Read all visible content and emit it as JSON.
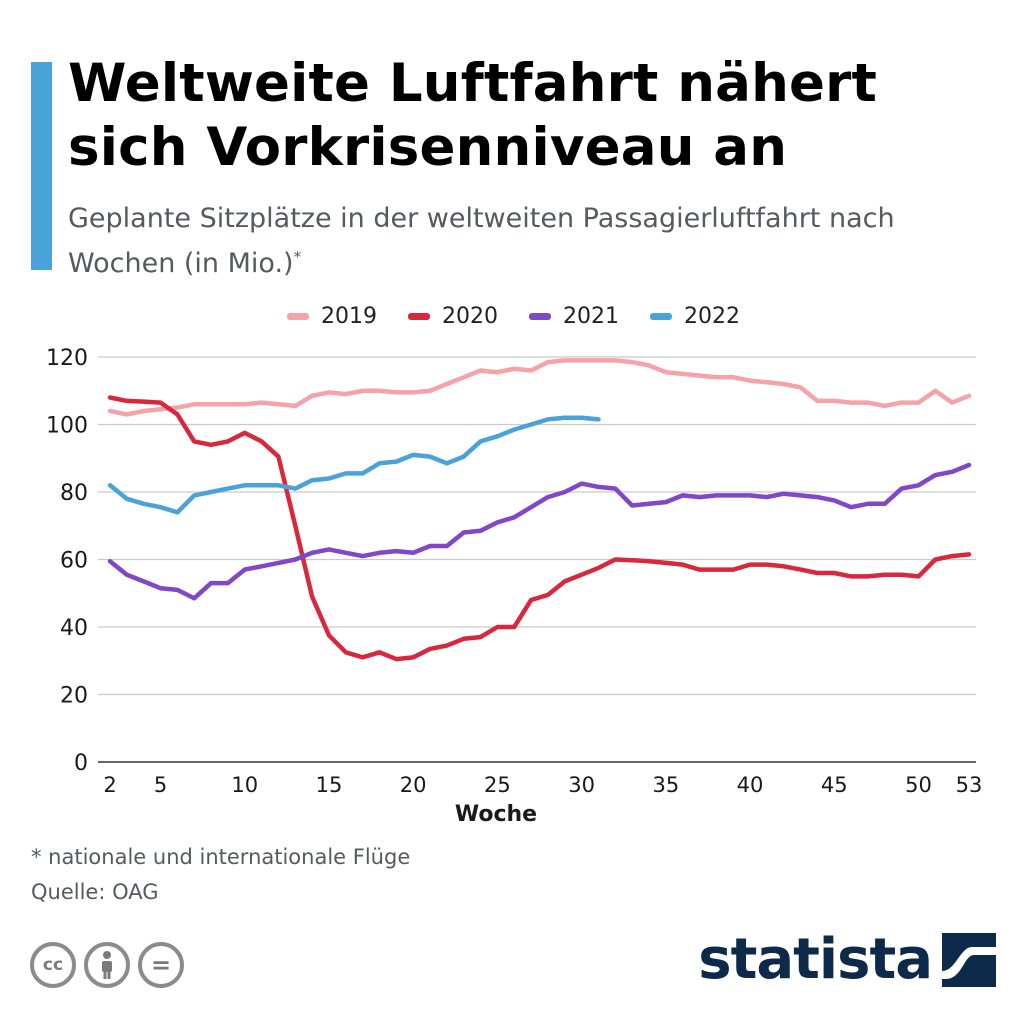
{
  "header": {
    "title": "Weltweite Luftfahrt nähert sich Vorkrisenniveau an",
    "subtitle": "Geplante Sitzplätze in der weltweiten Passagierluftfahrt nach Wochen (in Mio.)",
    "subtitle_marker": "*",
    "accent_color": "#4aa3d8"
  },
  "chart_data": {
    "type": "line",
    "title": "",
    "xlabel": "Woche",
    "ylabel": "",
    "xlim": [
      2,
      53
    ],
    "ylim": [
      0,
      120
    ],
    "x_ticks": [
      2,
      5,
      10,
      15,
      20,
      25,
      30,
      35,
      40,
      45,
      50,
      53
    ],
    "y_ticks": [
      0,
      20,
      40,
      60,
      80,
      100,
      120
    ],
    "grid": true,
    "legend_position": "top",
    "series": [
      {
        "name": "2019",
        "color": "#f5a3a8",
        "x": [
          2,
          3,
          4,
          5,
          6,
          7,
          8,
          9,
          10,
          11,
          12,
          13,
          14,
          15,
          16,
          17,
          18,
          19,
          20,
          21,
          22,
          23,
          24,
          25,
          26,
          27,
          28,
          29,
          30,
          31,
          32,
          33,
          34,
          35,
          36,
          37,
          38,
          39,
          40,
          41,
          42,
          43,
          44,
          45,
          46,
          47,
          48,
          49,
          50,
          51,
          52,
          53
        ],
        "values": [
          104,
          103,
          104,
          104.5,
          105,
          106,
          106,
          106,
          106,
          106.5,
          106,
          105.5,
          108.5,
          109.5,
          109,
          110,
          110,
          109.5,
          109.5,
          110,
          112,
          114,
          116,
          115.5,
          116.5,
          116,
          118.5,
          119,
          119,
          119,
          119,
          118.5,
          117.5,
          115.5,
          115,
          114.5,
          114,
          114,
          113,
          112.5,
          112,
          111,
          107,
          107,
          106.5,
          106.5,
          105.5,
          106.5,
          106.5,
          110,
          106.5,
          108.5
        ]
      },
      {
        "name": "2020",
        "color": "#d9283e",
        "x": [
          2,
          3,
          4,
          5,
          6,
          7,
          8,
          9,
          10,
          11,
          12,
          13,
          14,
          15,
          16,
          17,
          18,
          19,
          20,
          21,
          22,
          23,
          24,
          25,
          26,
          27,
          28,
          29,
          30,
          31,
          32,
          33,
          34,
          35,
          36,
          37,
          38,
          39,
          40,
          41,
          42,
          43,
          44,
          45,
          46,
          47,
          48,
          49,
          50,
          51,
          52,
          53
        ],
        "values": [
          108,
          107,
          106.8,
          106.5,
          103,
          95,
          94,
          95,
          97.5,
          95,
          90.5,
          70,
          49,
          37.5,
          32.5,
          31,
          32.5,
          30.5,
          31,
          33.5,
          34.5,
          36.5,
          37,
          40,
          40,
          48,
          49.5,
          53.5,
          55.5,
          57.5,
          60,
          59.8,
          59.5,
          59,
          58.5,
          57,
          57,
          57,
          58.5,
          58.5,
          58,
          57,
          56,
          56,
          55,
          55,
          55.5,
          55.5,
          55,
          60,
          61,
          61.5
        ]
      },
      {
        "name": "2021",
        "color": "#8047c9",
        "x": [
          2,
          3,
          4,
          5,
          6,
          7,
          8,
          9,
          10,
          11,
          12,
          13,
          14,
          15,
          16,
          17,
          18,
          19,
          20,
          21,
          22,
          23,
          24,
          25,
          26,
          27,
          28,
          29,
          30,
          31,
          32,
          33,
          34,
          35,
          36,
          37,
          38,
          39,
          40,
          41,
          42,
          43,
          44,
          45,
          46,
          47,
          48,
          49,
          50,
          51,
          52,
          53
        ],
        "values": [
          59.5,
          55.5,
          53.5,
          51.5,
          51,
          48.5,
          53,
          53,
          57,
          58,
          59,
          60,
          62,
          63,
          62,
          61,
          62,
          62.5,
          62,
          64,
          64,
          68,
          68.5,
          71,
          72.5,
          75.5,
          78.5,
          80,
          82.5,
          81.5,
          81,
          76,
          76.5,
          77,
          79,
          78.5,
          79,
          79,
          79,
          78.5,
          79.5,
          79,
          78.5,
          77.5,
          75.5,
          76.5,
          76.5,
          81,
          82,
          85,
          86,
          88
        ]
      },
      {
        "name": "2022",
        "color": "#4aa3d8",
        "x": [
          2,
          3,
          4,
          5,
          6,
          7,
          8,
          9,
          10,
          11,
          12,
          13,
          14,
          15,
          16,
          17,
          18,
          19,
          20,
          21,
          22,
          23,
          24,
          25,
          26,
          27,
          28,
          29,
          30,
          31
        ],
        "values": [
          82,
          78,
          76.5,
          75.5,
          74,
          79,
          80,
          81,
          82,
          82,
          82,
          81,
          83.5,
          84,
          85.5,
          85.5,
          88.5,
          89,
          91,
          90.5,
          88.5,
          90.5,
          95,
          96.5,
          98.5,
          100,
          101.5,
          102,
          102,
          101.5
        ]
      }
    ]
  },
  "footer": {
    "footnote": "* nationale und internationale Flüge",
    "source": "Quelle: OAG",
    "brand": "statista",
    "brand_color": "#0d2a4a",
    "license_icons": [
      "cc-icon",
      "person-attribution-icon",
      "equals-noderivatives-icon"
    ],
    "license_labels": [
      "cc",
      "",
      "="
    ]
  }
}
